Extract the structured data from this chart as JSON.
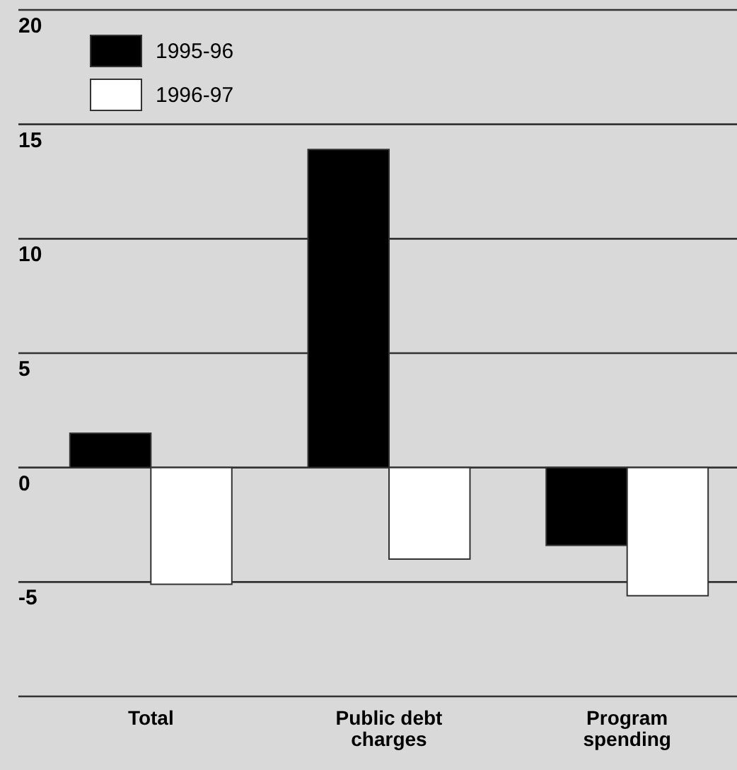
{
  "chart_data": {
    "type": "bar",
    "categories": [
      "Total",
      "Public debt charges",
      "Program spending"
    ],
    "series": [
      {
        "name": "1995-96",
        "color": "#000000",
        "values": [
          1.5,
          13.9,
          -3.4
        ]
      },
      {
        "name": "1996-97",
        "color": "#ffffff",
        "values": [
          -5.1,
          -4.0,
          -5.6
        ]
      }
    ],
    "ylim": [
      -10,
      20
    ],
    "yticks": [
      {
        "value": -10,
        "label": null
      },
      -5,
      0,
      5,
      10,
      15,
      20
    ],
    "grid": "y",
    "legend": "top left"
  }
}
